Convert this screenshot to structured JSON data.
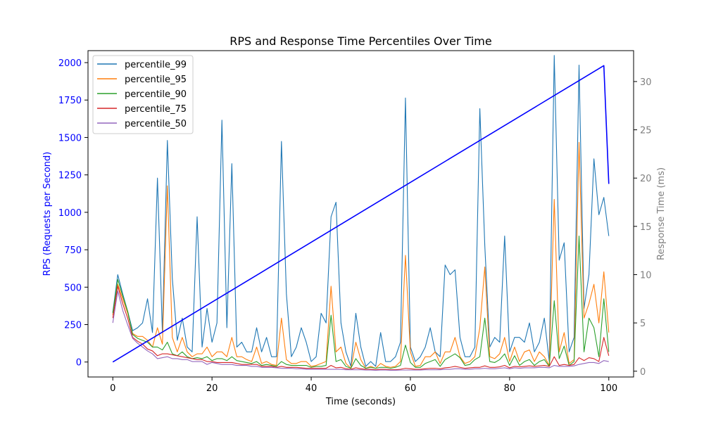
{
  "chart_data": {
    "type": "line",
    "title": "RPS and Response Time Percentiles Over Time",
    "xlabel": "Time (seconds)",
    "ylabel_left": "RPS (Requests per Second)",
    "ylabel_right": "Response Time (ms)",
    "xlim": [
      -5,
      105
    ],
    "ylim_left": [
      -100,
      2080
    ],
    "ylim_right": [
      -0.6,
      33.2
    ],
    "xticks": [
      0,
      20,
      40,
      60,
      80,
      100
    ],
    "yticks_left": [
      0,
      250,
      500,
      750,
      1000,
      1250,
      1500,
      1750,
      2000
    ],
    "yticks_right": [
      0,
      5,
      10,
      15,
      20,
      25,
      30
    ],
    "legend_position": "upper-left",
    "grid": false,
    "colors": {
      "rps": "#0000ff",
      "left_axis_text": "#0000ff",
      "right_axis_text": "#808080"
    },
    "rps_series": {
      "name": "",
      "x": [
        0,
        10,
        20,
        30,
        40,
        50,
        60,
        70,
        76,
        77,
        78,
        80,
        90,
        98,
        99,
        100
      ],
      "values": [
        0,
        200,
        400,
        600,
        800,
        1000,
        1200,
        1400,
        1520,
        1540,
        1560,
        1600,
        1800,
        1960,
        1980,
        1190
      ]
    },
    "series": [
      {
        "name": "percentile_99",
        "color": "#1f77b4",
        "x": [
          0,
          1,
          2,
          3,
          4,
          5,
          6,
          7,
          8,
          9,
          10,
          11,
          12,
          13,
          14,
          15,
          16,
          17,
          18,
          19,
          20,
          21,
          22,
          23,
          24,
          25,
          26,
          27,
          28,
          29,
          30,
          31,
          32,
          33,
          34,
          35,
          36,
          37,
          38,
          39,
          40,
          41,
          42,
          43,
          44,
          45,
          46,
          47,
          48,
          49,
          50,
          51,
          52,
          53,
          54,
          55,
          56,
          57,
          58,
          59,
          60,
          61,
          62,
          63,
          64,
          65,
          66,
          67,
          68,
          69,
          70,
          71,
          72,
          73,
          74,
          75,
          76,
          77,
          78,
          79,
          80,
          81,
          82,
          83,
          84,
          85,
          86,
          87,
          88,
          89,
          90,
          91,
          92,
          93,
          94,
          95,
          96,
          97,
          98,
          99,
          100
        ],
        "values": [
          6.1,
          10.0,
          8.0,
          6.2,
          4.2,
          4.5,
          5.0,
          7.5,
          4.0,
          20.0,
          4.0,
          23.9,
          9.6,
          3.2,
          5.5,
          2.5,
          2.0,
          16.0,
          2.5,
          6.5,
          3.0,
          5.0,
          26.0,
          4.5,
          21.5,
          2.5,
          3.0,
          2.0,
          2.0,
          4.5,
          2.0,
          3.5,
          1.5,
          1.5,
          23.8,
          8.0,
          1.5,
          2.5,
          4.5,
          3.0,
          1.0,
          1.5,
          6.0,
          5.0,
          16.0,
          17.5,
          5.0,
          2.0,
          0.5,
          6.0,
          2.5,
          0.5,
          1.0,
          0.5,
          4.0,
          1.0,
          1.0,
          1.5,
          3.0,
          28.3,
          2.5,
          1.0,
          1.5,
          2.5,
          4.5,
          2.0,
          1.5,
          11.0,
          10.0,
          10.5,
          3.5,
          1.5,
          1.5,
          2.5,
          27.2,
          13.0,
          2.5,
          3.5,
          3.0,
          14.0,
          2.0,
          3.5,
          3.5,
          3.0,
          5.0,
          2.0,
          3.0,
          5.5,
          1.0,
          32.7,
          11.5,
          13.3,
          2.0,
          3.5,
          31.7,
          6.5,
          10.0,
          22.0,
          16.2,
          18.0,
          14.0
        ]
      },
      {
        "name": "percentile_95",
        "color": "#ff7f0e",
        "x": [
          0,
          1,
          2,
          3,
          4,
          5,
          6,
          7,
          8,
          9,
          10,
          11,
          12,
          13,
          14,
          15,
          16,
          17,
          18,
          19,
          20,
          21,
          22,
          23,
          24,
          25,
          26,
          27,
          28,
          29,
          30,
          31,
          32,
          33,
          34,
          35,
          36,
          37,
          38,
          39,
          40,
          41,
          42,
          43,
          44,
          45,
          46,
          47,
          48,
          49,
          50,
          51,
          52,
          53,
          54,
          55,
          56,
          57,
          58,
          59,
          60,
          61,
          62,
          63,
          64,
          65,
          66,
          67,
          68,
          69,
          70,
          71,
          72,
          73,
          74,
          75,
          76,
          77,
          78,
          79,
          80,
          81,
          82,
          83,
          84,
          85,
          86,
          87,
          88,
          89,
          90,
          91,
          92,
          93,
          94,
          95,
          96,
          97,
          98,
          99,
          100
        ],
        "values": [
          5.8,
          9.0,
          7.5,
          6.0,
          3.9,
          3.6,
          3.6,
          3.2,
          2.5,
          4.5,
          2.8,
          19.2,
          3.5,
          2.0,
          3.5,
          2.0,
          1.5,
          1.8,
          1.8,
          2.5,
          1.5,
          2.0,
          2.0,
          1.5,
          3.5,
          1.5,
          1.5,
          1.2,
          1.0,
          2.5,
          0.8,
          1.0,
          0.7,
          0.6,
          5.5,
          1.2,
          0.8,
          0.8,
          1.0,
          1.0,
          0.5,
          0.6,
          0.8,
          1.0,
          8.8,
          2.0,
          2.5,
          0.8,
          0.3,
          3.0,
          1.2,
          0.3,
          0.5,
          0.3,
          0.8,
          0.5,
          0.4,
          0.5,
          1.0,
          12.0,
          2.0,
          0.5,
          0.6,
          1.5,
          1.5,
          2.0,
          0.8,
          2.0,
          2.0,
          3.5,
          1.5,
          0.8,
          1.0,
          1.5,
          4.5,
          10.8,
          1.5,
          1.3,
          1.8,
          3.5,
          1.0,
          2.5,
          1.0,
          2.0,
          2.2,
          1.0,
          2.0,
          1.5,
          0.6,
          17.8,
          2.0,
          4.0,
          0.8,
          1.2,
          23.7,
          5.5,
          7.0,
          9.0,
          5.0,
          10.3,
          4.0
        ]
      },
      {
        "name": "percentile_90",
        "color": "#2ca02c",
        "x": [
          0,
          1,
          2,
          3,
          4,
          5,
          6,
          7,
          8,
          9,
          10,
          11,
          12,
          13,
          14,
          15,
          16,
          17,
          18,
          19,
          20,
          21,
          22,
          23,
          24,
          25,
          26,
          27,
          28,
          29,
          30,
          31,
          32,
          33,
          34,
          35,
          36,
          37,
          38,
          39,
          40,
          41,
          42,
          43,
          44,
          45,
          46,
          47,
          48,
          49,
          50,
          51,
          52,
          53,
          54,
          55,
          56,
          57,
          58,
          59,
          60,
          61,
          62,
          63,
          64,
          65,
          66,
          67,
          68,
          69,
          70,
          71,
          72,
          73,
          74,
          75,
          76,
          77,
          78,
          79,
          80,
          81,
          82,
          83,
          84,
          85,
          86,
          87,
          88,
          89,
          90,
          91,
          92,
          93,
          94,
          95,
          96,
          97,
          98,
          99,
          100
        ],
        "values": [
          6.0,
          9.5,
          7.8,
          6.2,
          3.8,
          3.4,
          3.2,
          3.0,
          2.5,
          2.5,
          2.2,
          3.0,
          1.8,
          1.6,
          2.0,
          1.5,
          1.3,
          1.4,
          1.3,
          1.5,
          1.1,
          1.3,
          1.3,
          1.1,
          1.5,
          1.1,
          1.0,
          0.9,
          0.8,
          1.0,
          0.6,
          0.7,
          0.6,
          0.5,
          1.0,
          0.7,
          0.6,
          0.6,
          0.6,
          0.6,
          0.4,
          0.5,
          0.5,
          0.6,
          5.8,
          1.0,
          1.2,
          0.5,
          0.3,
          1.3,
          0.6,
          0.3,
          0.4,
          0.3,
          0.4,
          0.4,
          0.3,
          0.4,
          0.6,
          2.7,
          0.9,
          0.4,
          0.4,
          0.8,
          1.0,
          1.2,
          0.5,
          1.2,
          1.5,
          1.8,
          1.4,
          0.6,
          0.7,
          1.2,
          1.5,
          5.5,
          1.0,
          0.9,
          1.2,
          1.8,
          0.6,
          1.6,
          0.6,
          1.0,
          1.2,
          0.6,
          1.0,
          1.2,
          0.5,
          7.3,
          1.3,
          2.6,
          0.6,
          1.0,
          14.0,
          2.0,
          5.5,
          4.5,
          1.5,
          7.5,
          2.0
        ]
      },
      {
        "name": "percentile_75",
        "color": "#d62728",
        "x": [
          0,
          1,
          2,
          3,
          4,
          5,
          6,
          7,
          8,
          9,
          10,
          11,
          12,
          13,
          14,
          15,
          16,
          17,
          18,
          19,
          20,
          21,
          22,
          23,
          24,
          25,
          26,
          27,
          28,
          29,
          30,
          31,
          32,
          33,
          34,
          35,
          36,
          37,
          38,
          39,
          40,
          41,
          42,
          43,
          44,
          45,
          46,
          47,
          48,
          49,
          50,
          51,
          52,
          53,
          54,
          55,
          56,
          57,
          58,
          59,
          60,
          61,
          62,
          63,
          64,
          65,
          66,
          67,
          68,
          69,
          70,
          71,
          72,
          73,
          74,
          75,
          76,
          77,
          78,
          79,
          80,
          81,
          82,
          83,
          84,
          85,
          86,
          87,
          88,
          89,
          90,
          91,
          92,
          93,
          94,
          95,
          96,
          97,
          98,
          99,
          100
        ],
        "values": [
          5.5,
          8.8,
          7.0,
          5.5,
          3.5,
          3.1,
          2.8,
          2.3,
          2.1,
          1.6,
          1.8,
          1.8,
          1.7,
          1.6,
          1.5,
          1.4,
          1.3,
          1.2,
          1.2,
          1.0,
          1.0,
          0.9,
          0.9,
          0.9,
          0.9,
          0.8,
          0.7,
          0.7,
          0.7,
          0.7,
          0.5,
          0.5,
          0.5,
          0.4,
          0.5,
          0.4,
          0.4,
          0.4,
          0.35,
          0.3,
          0.3,
          0.3,
          0.3,
          0.3,
          0.6,
          0.35,
          0.4,
          0.25,
          0.2,
          0.35,
          0.25,
          0.2,
          0.2,
          0.15,
          0.2,
          0.2,
          0.15,
          0.15,
          0.2,
          0.3,
          0.25,
          0.2,
          0.2,
          0.25,
          0.3,
          0.3,
          0.25,
          0.35,
          0.4,
          0.5,
          0.4,
          0.3,
          0.35,
          0.4,
          0.4,
          0.55,
          0.4,
          0.4,
          0.45,
          0.6,
          0.35,
          0.5,
          0.45,
          0.5,
          0.55,
          0.5,
          0.55,
          0.6,
          0.5,
          1.5,
          0.6,
          0.7,
          0.6,
          0.7,
          1.4,
          1.1,
          1.4,
          1.3,
          1.0,
          3.5,
          1.6
        ]
      },
      {
        "name": "percentile_50",
        "color": "#9467bd",
        "x": [
          0,
          1,
          2,
          3,
          4,
          5,
          6,
          7,
          8,
          9,
          10,
          11,
          12,
          13,
          14,
          15,
          16,
          17,
          18,
          19,
          20,
          21,
          22,
          23,
          24,
          25,
          26,
          27,
          28,
          29,
          30,
          31,
          32,
          33,
          34,
          35,
          36,
          37,
          38,
          39,
          40,
          41,
          42,
          43,
          44,
          45,
          46,
          47,
          48,
          49,
          50,
          51,
          52,
          53,
          54,
          55,
          56,
          57,
          58,
          59,
          60,
          61,
          62,
          63,
          64,
          65,
          66,
          67,
          68,
          69,
          70,
          71,
          72,
          73,
          74,
          75,
          76,
          77,
          78,
          79,
          80,
          81,
          82,
          83,
          84,
          85,
          86,
          87,
          88,
          89,
          90,
          91,
          92,
          93,
          94,
          95,
          96,
          97,
          98,
          99,
          100
        ],
        "values": [
          5.0,
          8.3,
          6.3,
          4.8,
          3.4,
          2.9,
          2.5,
          2.1,
          1.8,
          1.3,
          1.4,
          1.5,
          1.3,
          1.3,
          1.2,
          1.2,
          1.0,
          1.0,
          1.0,
          0.7,
          0.9,
          0.8,
          0.7,
          0.7,
          0.7,
          0.6,
          0.6,
          0.6,
          0.5,
          0.5,
          0.4,
          0.4,
          0.4,
          0.35,
          0.3,
          0.3,
          0.3,
          0.25,
          0.25,
          0.2,
          0.2,
          0.2,
          0.2,
          0.2,
          0.2,
          0.2,
          0.2,
          0.15,
          0.15,
          0.15,
          0.15,
          0.12,
          0.12,
          0.1,
          0.12,
          0.12,
          0.1,
          0.1,
          0.12,
          0.12,
          0.12,
          0.12,
          0.12,
          0.15,
          0.15,
          0.15,
          0.15,
          0.2,
          0.2,
          0.25,
          0.25,
          0.2,
          0.2,
          0.25,
          0.25,
          0.3,
          0.25,
          0.25,
          0.3,
          0.35,
          0.25,
          0.35,
          0.3,
          0.35,
          0.35,
          0.35,
          0.4,
          0.4,
          0.35,
          0.6,
          0.5,
          0.5,
          0.5,
          0.55,
          0.7,
          0.8,
          0.9,
          0.9,
          0.8,
          1.1,
          1.0
        ]
      }
    ]
  }
}
